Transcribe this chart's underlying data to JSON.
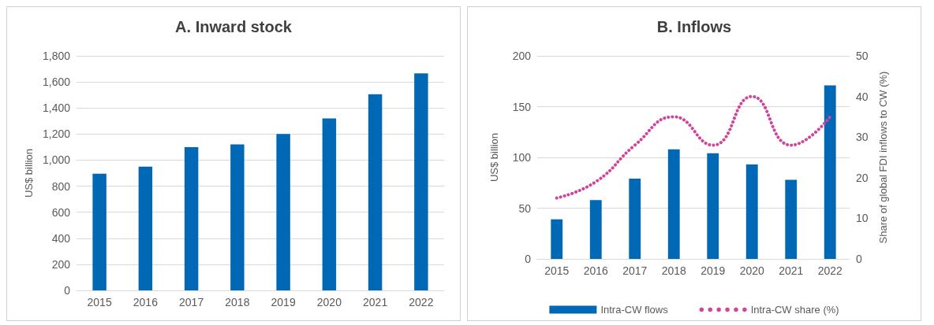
{
  "chart_data": [
    {
      "type": "bar",
      "title": "A. Inward stock",
      "ylabel": "US$ billion",
      "categories": [
        "2015",
        "2016",
        "2017",
        "2018",
        "2019",
        "2020",
        "2021",
        "2022"
      ],
      "series": [
        {
          "color": "#0068b5",
          "values": [
            895,
            950,
            1100,
            1120,
            1200,
            1320,
            1505,
            1665
          ]
        }
      ],
      "ylim": [
        0,
        1800
      ],
      "yticks": [
        {
          "value": 0,
          "label": "0"
        },
        {
          "value": 200,
          "label": "200"
        },
        {
          "value": 400,
          "label": "400"
        },
        {
          "value": 600,
          "label": "600"
        },
        {
          "value": 800,
          "label": "800"
        },
        {
          "value": 1000,
          "label": "1,000"
        },
        {
          "value": 1200,
          "label": "1,200"
        },
        {
          "value": 1400,
          "label": "1,400"
        },
        {
          "value": 1600,
          "label": "1,600"
        },
        {
          "value": 1800,
          "label": "1,800"
        }
      ],
      "grid": "y",
      "legend": false
    },
    {
      "type": "bar",
      "title": "B. Inflows",
      "ylabel": "US$ billion",
      "y2label": "Share of global FDI inflows to CW (%)",
      "categories": [
        "2015",
        "2016",
        "2017",
        "2018",
        "2019",
        "2020",
        "2021",
        "2022"
      ],
      "series": [
        {
          "name": "Intra-CW flows",
          "color": "#0068b5",
          "values": [
            39,
            58,
            79,
            108,
            104,
            93,
            78,
            171
          ]
        },
        {
          "name": "Intra-CW share (%)",
          "type": "line",
          "axis": "y2",
          "color": "#d1449a",
          "line_style": "dotted",
          "values": [
            15,
            19,
            28,
            35,
            28,
            40,
            28,
            35
          ]
        }
      ],
      "ylim": [
        0,
        200
      ],
      "yticks": [
        0,
        50,
        100,
        150,
        200
      ],
      "y2lim": [
        0,
        50
      ],
      "y2ticks": [
        0,
        10,
        20,
        30,
        40,
        50
      ],
      "grid": "y",
      "legend": "bottom"
    }
  ]
}
